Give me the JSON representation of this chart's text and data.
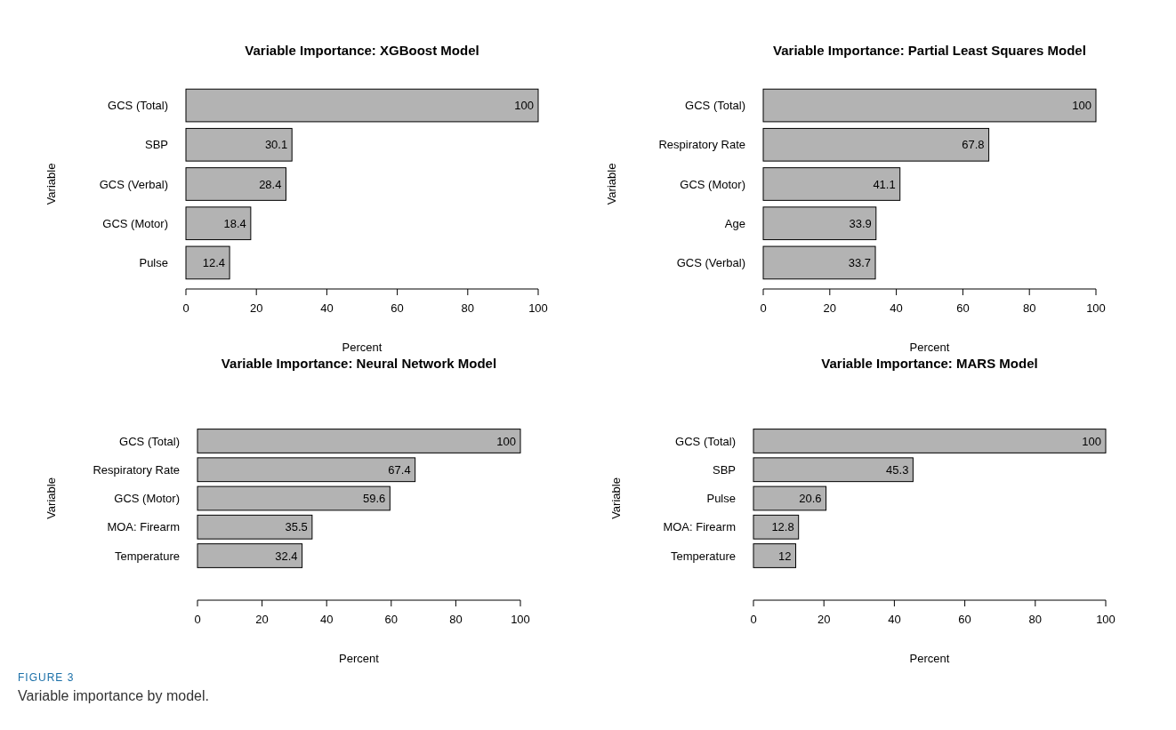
{
  "chart_data": [
    {
      "type": "bar",
      "orientation": "horizontal",
      "title": "Variable Importance: XGBoost Model",
      "xlabel": "Percent",
      "ylabel": "Variable",
      "categories": [
        "GCS (Total)",
        "SBP",
        "GCS (Verbal)",
        "GCS (Motor)",
        "Pulse"
      ],
      "values": [
        100,
        30.1,
        28.4,
        18.4,
        12.4
      ],
      "color": "#b3b3b3",
      "xlim": [
        0,
        100
      ],
      "xticks": [
        0,
        20,
        40,
        60,
        80,
        100
      ],
      "data_labels": true
    },
    {
      "type": "bar",
      "orientation": "horizontal",
      "title": "Variable Importance: Partial Least Squares Model",
      "xlabel": "Percent",
      "ylabel": "Variable",
      "categories": [
        "GCS (Total)",
        "Respiratory Rate",
        "GCS (Motor)",
        "Age",
        "GCS (Verbal)"
      ],
      "values": [
        100,
        67.8,
        41.1,
        33.9,
        33.7
      ],
      "color": "#b3b3b3",
      "xlim": [
        0,
        100
      ],
      "xticks": [
        0,
        20,
        40,
        60,
        80,
        100
      ],
      "data_labels": true
    },
    {
      "type": "bar",
      "orientation": "horizontal",
      "title": "Variable Importance: Neural Network Model",
      "xlabel": "Percent",
      "ylabel": "Variable",
      "categories": [
        "GCS (Total)",
        "Respiratory Rate",
        "GCS (Motor)",
        "MOA: Firearm",
        "Temperature"
      ],
      "values": [
        100,
        67.4,
        59.6,
        35.5,
        32.4
      ],
      "color": "#b3b3b3",
      "xlim": [
        0,
        100
      ],
      "xticks": [
        0,
        20,
        40,
        60,
        80,
        100
      ],
      "data_labels": true,
      "annotations": [
        "FIGURE 3",
        "Variable importance by model."
      ]
    },
    {
      "type": "bar",
      "orientation": "horizontal",
      "title": "Variable Importance: MARS Model",
      "xlabel": "Percent",
      "ylabel": "Variable",
      "categories": [
        "GCS (Total)",
        "SBP",
        "Pulse",
        "MOA: Firearm",
        "Temperature"
      ],
      "values": [
        100,
        45.3,
        20.6,
        12.8,
        12
      ],
      "color": "#b3b3b3",
      "xlim": [
        0,
        100
      ],
      "xticks": [
        0,
        20,
        40,
        60,
        80,
        100
      ],
      "data_labels": true
    }
  ]
}
